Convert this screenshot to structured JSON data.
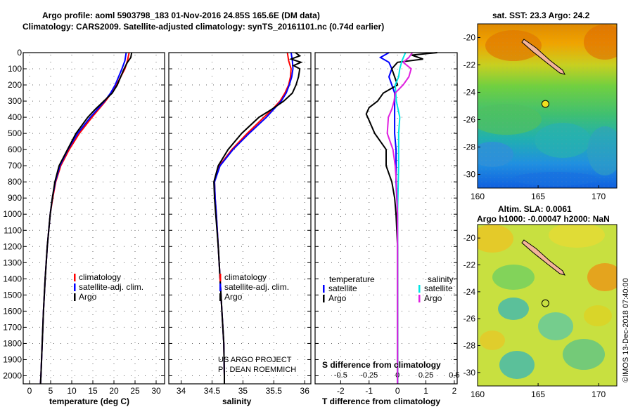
{
  "header": {
    "line1": "Argo profile: aoml 5903798_183 01-Nov-2016 24.85S 165.6E (DM data)",
    "line2": "Climatology: CARS2009. Satellite-adjusted climatology: synTS_20161101.nc (0.74d earlier)"
  },
  "colors": {
    "climatology": "#ff0000",
    "satellite": "#0000ff",
    "argo": "#000000",
    "salinity_satellite": "#00e5e5",
    "salinity_argo": "#e020e0"
  },
  "credits": {
    "project": "US ARGO PROJECT",
    "pi": "PI: DEAN ROEMMICH",
    "imos": "©IMOS 13-Dec-2018 07:40:00"
  },
  "maps": {
    "top_title": "sat. SST: 23.3 Argo: 24.2",
    "bottom_title_1": "Altim. SLA: 0.0061",
    "bottom_title_2": "Argo h1000: -0.00047 h2000: NaN",
    "lon_ticks": [
      "160",
      "165",
      "170"
    ],
    "lat_ticks": [
      "-20",
      "-22",
      "-24",
      "-26",
      "-28",
      "-30"
    ],
    "argo_position": {
      "lon": 165.6,
      "lat": -24.85
    },
    "lon_range": [
      160,
      171.5
    ],
    "lat_range": [
      -31,
      -19
    ]
  },
  "chart_data": [
    {
      "type": "line",
      "name": "temperature",
      "xlabel": "temperature (deg C)",
      "ylabel": "",
      "xlim": [
        -1.5,
        32
      ],
      "ylim": [
        2050,
        0
      ],
      "xticks": [
        "0",
        "5",
        "10",
        "15",
        "20",
        "25",
        "30"
      ],
      "yticks": [
        "0",
        "100",
        "200",
        "300",
        "400",
        "500",
        "600",
        "700",
        "800",
        "900",
        "1000",
        "1100",
        "1200",
        "1300",
        "1400",
        "1500",
        "1600",
        "1700",
        "1800",
        "1900",
        "2000"
      ],
      "legend": [
        "climatology",
        "satellite-adj. clim.",
        "Argo"
      ],
      "legend_position": "lower-right",
      "series": [
        {
          "name": "climatology",
          "color": "#ff0000",
          "depth": [
            0,
            50,
            100,
            150,
            200,
            250,
            300,
            400,
            500,
            600,
            700,
            800,
            900,
            1000,
            1200,
            1400,
            1600,
            1800,
            2000,
            2050
          ],
          "values": [
            23.6,
            23.2,
            22.6,
            21.6,
            20.6,
            19.4,
            18.0,
            14.8,
            11.8,
            9.4,
            7.4,
            6.2,
            5.5,
            4.9,
            4.2,
            3.7,
            3.3,
            3.0,
            2.7,
            2.6
          ]
        },
        {
          "name": "satellite-adj. clim.",
          "color": "#0000ff",
          "depth": [
            0,
            50,
            100,
            150,
            200,
            250,
            300,
            400,
            500,
            600,
            700,
            800,
            900,
            1000,
            1200,
            1400,
            1600,
            1800,
            2000,
            2050
          ],
          "values": [
            22.9,
            22.6,
            21.9,
            21.1,
            20.3,
            19.2,
            17.8,
            14.4,
            11.4,
            9.1,
            7.2,
            6.1,
            5.4,
            4.9,
            4.2,
            3.7,
            3.3,
            3.0,
            2.7,
            2.6
          ]
        },
        {
          "name": "Argo",
          "color": "#000000",
          "depth": [
            0,
            30,
            60,
            100,
            150,
            200,
            250,
            300,
            350,
            400,
            500,
            600,
            700,
            800,
            900,
            1000,
            1200,
            1400,
            1600,
            1800,
            2000,
            2050
          ],
          "values": [
            24.2,
            24.0,
            23.2,
            22.4,
            21.6,
            20.8,
            19.6,
            17.6,
            15.6,
            13.8,
            11.0,
            9.0,
            7.0,
            6.0,
            5.4,
            4.9,
            4.2,
            3.7,
            3.3,
            3.0,
            2.7,
            2.6
          ]
        }
      ]
    },
    {
      "type": "line",
      "name": "salinity",
      "xlabel": "salinity",
      "ylabel": "",
      "xlim": [
        33.8,
        36.1
      ],
      "ylim": [
        2050,
        0
      ],
      "xticks": [
        "34",
        "34.5",
        "35",
        "35.5",
        "36"
      ],
      "legend": [
        "climatology",
        "satellite-adj. clim.",
        "Argo"
      ],
      "legend_position": "lower-right",
      "series": [
        {
          "name": "climatology",
          "color": "#ff0000",
          "depth": [
            0,
            50,
            100,
            150,
            200,
            250,
            300,
            350,
            400,
            500,
            600,
            700,
            800,
            900,
            1000,
            1200,
            1400,
            1600,
            1800,
            2000,
            2050
          ],
          "values": [
            35.72,
            35.74,
            35.78,
            35.77,
            35.74,
            35.68,
            35.6,
            35.48,
            35.34,
            35.07,
            34.82,
            34.62,
            34.54,
            34.55,
            34.57,
            34.6,
            34.63,
            34.66,
            34.69,
            34.7,
            34.7
          ]
        },
        {
          "name": "satellite-adj. clim.",
          "color": "#0000ff",
          "depth": [
            0,
            50,
            100,
            150,
            200,
            250,
            300,
            350,
            400,
            500,
            600,
            700,
            800,
            900,
            1000,
            1200,
            1400,
            1600,
            1800,
            2000,
            2050
          ],
          "values": [
            35.78,
            35.8,
            35.81,
            35.79,
            35.75,
            35.7,
            35.62,
            35.5,
            35.38,
            35.1,
            34.84,
            34.63,
            34.54,
            34.55,
            34.57,
            34.6,
            34.63,
            34.66,
            34.69,
            34.7,
            34.7
          ]
        },
        {
          "name": "Argo",
          "color": "#000000",
          "depth": [
            0,
            20,
            40,
            60,
            80,
            100,
            150,
            200,
            250,
            300,
            350,
            400,
            500,
            600,
            700,
            800,
            900,
            1000,
            1200,
            1400,
            1600,
            1800,
            2000,
            2050
          ],
          "values": [
            35.85,
            35.92,
            35.78,
            35.94,
            35.82,
            35.92,
            35.9,
            35.86,
            35.8,
            35.66,
            35.47,
            35.26,
            34.98,
            34.76,
            34.6,
            34.53,
            34.54,
            34.56,
            34.6,
            34.63,
            34.66,
            34.69,
            34.7,
            34.7
          ]
        }
      ]
    },
    {
      "type": "line",
      "name": "difference",
      "xlabel": "T difference from climatology",
      "x2label": "S difference from climatology",
      "xlim": [
        -2.9,
        2.1
      ],
      "ylim": [
        2050,
        0
      ],
      "xticks": [
        "-2",
        "-1",
        "0",
        "1",
        "2"
      ],
      "x2ticks": [
        "-0.5",
        "-0.25",
        "0",
        "0.25",
        "0.5"
      ],
      "x2lim": [
        -0.725,
        0.525
      ],
      "legend_headers": [
        "temperature",
        "salinity"
      ],
      "legend": [
        "satellite",
        "Argo",
        "satellite",
        "Argo"
      ],
      "legend_position": "lower-center",
      "series": [
        {
          "name": "satellite",
          "color": "#0000ff",
          "axis": "temperature",
          "depth": [
            0,
            30,
            60,
            100,
            150,
            200,
            250,
            300,
            400,
            500,
            600,
            800,
            1000,
            1500,
            2000,
            2050
          ],
          "values": [
            -0.3,
            -0.6,
            -0.3,
            -0.2,
            -0.3,
            -0.2,
            -0.1,
            -0.1,
            -0.1,
            -0.1,
            -0.05,
            -0.05,
            0,
            0,
            0,
            0
          ]
        },
        {
          "name": "Argo",
          "color": "#000000",
          "axis": "temperature",
          "depth": [
            0,
            15,
            40,
            60,
            100,
            150,
            200,
            250,
            300,
            340,
            380,
            420,
            500,
            600,
            700,
            800,
            900,
            1000,
            1200,
            1400,
            1500,
            1800,
            2000,
            2050
          ],
          "values": [
            1.4,
            0.5,
            0.9,
            0.0,
            -0.2,
            -0.1,
            0.0,
            -0.5,
            -0.7,
            -1.0,
            -1.1,
            -1.0,
            -0.8,
            -0.4,
            -0.4,
            -0.2,
            -0.1,
            -0.05,
            0.0,
            0.0,
            0.0,
            0.0,
            0.0,
            0.0
          ]
        },
        {
          "name": "satellite",
          "color": "#00e5e5",
          "axis": "salinity",
          "depth": [
            0,
            50,
            100,
            150,
            200,
            300,
            400,
            500,
            700,
            1000,
            1500,
            2000,
            2050
          ],
          "values": [
            0.07,
            0.04,
            0.02,
            0.01,
            -0.02,
            -0.01,
            0.02,
            0.01,
            0.01,
            0.0,
            0.0,
            0.0,
            0.0
          ]
        },
        {
          "name": "Argo",
          "color": "#e020e0",
          "axis": "salinity",
          "depth": [
            0,
            30,
            60,
            100,
            150,
            200,
            250,
            300,
            350,
            400,
            500,
            600,
            700,
            800,
            1000,
            1200,
            1500,
            2000,
            2050
          ],
          "values": [
            0.13,
            0.1,
            0.05,
            0.12,
            0.1,
            0.05,
            -0.02,
            -0.03,
            -0.05,
            -0.08,
            -0.09,
            -0.04,
            -0.02,
            -0.01,
            0.0,
            0.0,
            0.0,
            0.0,
            0.0
          ]
        }
      ]
    }
  ]
}
